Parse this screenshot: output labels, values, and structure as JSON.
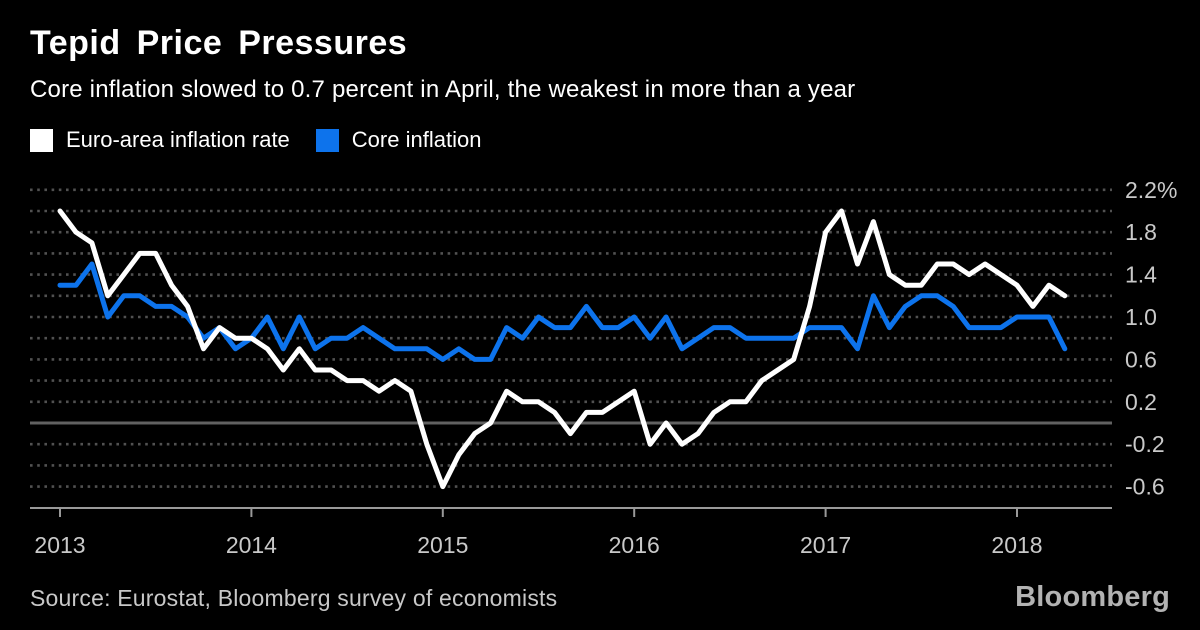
{
  "header": {
    "title": "Tepid Price Pressures",
    "subtitle": "Core inflation slowed to 0.7 percent in April, the weakest in more than a year"
  },
  "legend": {
    "items": [
      {
        "label": "Euro-area inflation rate",
        "color": "#ffffff"
      },
      {
        "label": "Core inflation",
        "color": "#0d73ec"
      }
    ]
  },
  "footer": {
    "source": "Source: Eurostat, Bloomberg survey of economists",
    "brand": "Bloomberg"
  },
  "colors": {
    "background": "#000000",
    "title_text": "#ffffff",
    "axis_text": "#c9c9c9",
    "grid_dotted": "#515151",
    "zero_line": "#616161",
    "axis_line": "#999999",
    "source_text": "#c8c8c8",
    "brand_text": "#b3b3b3"
  },
  "chart_data": {
    "type": "line",
    "title": "Tepid Price Pressures",
    "subtitle": "Core inflation slowed to 0.7 percent in April, the weakest in more than a year",
    "x_unit": "month",
    "x_start": "2013-01",
    "x_end": "2018-04",
    "x_tick_labels": [
      "2013",
      "2014",
      "2015",
      "2016",
      "2017",
      "2018"
    ],
    "y_axis": {
      "min": -0.8,
      "max": 2.2,
      "grid_step": 0.2,
      "unit": "%",
      "side": "right",
      "zero_line_solid": true,
      "tick_values": [
        2.2,
        1.8,
        1.4,
        1.0,
        0.6,
        0.2,
        -0.2,
        -0.6
      ],
      "tick_labels": [
        "2.2%",
        "1.8",
        "1.4",
        "1.0",
        "0.6",
        "0.2",
        "-0.2",
        "-0.6"
      ]
    },
    "grid": "dotted-horizontal",
    "legend_position": "top-left",
    "series": [
      {
        "name": "Euro-area inflation rate",
        "color": "#ffffff",
        "values": [
          2.0,
          1.8,
          1.7,
          1.2,
          1.4,
          1.6,
          1.6,
          1.3,
          1.1,
          0.7,
          0.9,
          0.8,
          0.8,
          0.7,
          0.5,
          0.7,
          0.5,
          0.5,
          0.4,
          0.4,
          0.3,
          0.4,
          0.3,
          -0.2,
          -0.6,
          -0.3,
          -0.1,
          0.0,
          0.3,
          0.2,
          0.2,
          0.1,
          -0.1,
          0.1,
          0.1,
          0.2,
          0.3,
          -0.2,
          0.0,
          -0.2,
          -0.1,
          0.1,
          0.2,
          0.2,
          0.4,
          0.5,
          0.6,
          1.1,
          1.8,
          2.0,
          1.5,
          1.9,
          1.4,
          1.3,
          1.3,
          1.5,
          1.5,
          1.4,
          1.5,
          1.4,
          1.3,
          1.1,
          1.3,
          1.2
        ]
      },
      {
        "name": "Core inflation",
        "color": "#0d73ec",
        "values": [
          1.3,
          1.3,
          1.5,
          1.0,
          1.2,
          1.2,
          1.1,
          1.1,
          1.0,
          0.8,
          0.9,
          0.7,
          0.8,
          1.0,
          0.7,
          1.0,
          0.7,
          0.8,
          0.8,
          0.9,
          0.8,
          0.7,
          0.7,
          0.7,
          0.6,
          0.7,
          0.6,
          0.6,
          0.9,
          0.8,
          1.0,
          0.9,
          0.9,
          1.1,
          0.9,
          0.9,
          1.0,
          0.8,
          1.0,
          0.7,
          0.8,
          0.9,
          0.9,
          0.8,
          0.8,
          0.8,
          0.8,
          0.9,
          0.9,
          0.9,
          0.7,
          1.2,
          0.9,
          1.1,
          1.2,
          1.2,
          1.1,
          0.9,
          0.9,
          0.9,
          1.0,
          1.0,
          1.0,
          0.7
        ]
      }
    ]
  }
}
